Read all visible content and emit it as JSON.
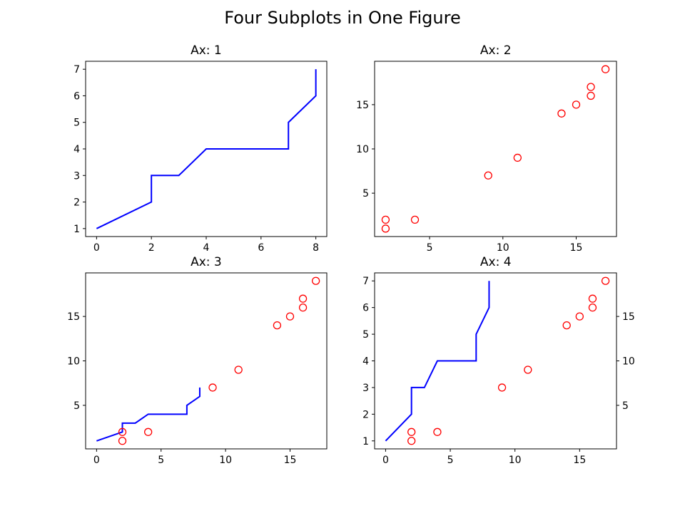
{
  "figure": {
    "title": "Four Subplots in One Figure"
  },
  "chart_data": [
    {
      "type": "line",
      "title": "Ax: 1",
      "xlim": [
        -0.4,
        8.4
      ],
      "ylim": [
        0.7,
        7.3
      ],
      "xticks": [
        0,
        2,
        4,
        6,
        8
      ],
      "yticks": [
        1,
        2,
        3,
        4,
        5,
        6,
        7
      ],
      "grid": false,
      "series": [
        {
          "kind": "line",
          "color": "#0000ff",
          "axis": "left",
          "x": [
            0,
            2,
            2,
            3,
            4,
            7,
            7,
            8,
            8
          ],
          "y": [
            1,
            2,
            3,
            3,
            4,
            4,
            5,
            6,
            7
          ]
        }
      ]
    },
    {
      "type": "scatter",
      "title": "Ax: 2",
      "xlim": [
        1.25,
        17.75
      ],
      "ylim": [
        0.1,
        19.9
      ],
      "xticks": [
        5,
        10,
        15
      ],
      "yticks": [
        5,
        10,
        15
      ],
      "grid": false,
      "series": [
        {
          "kind": "scatter",
          "color": "#ff0000",
          "axis": "left",
          "x": [
            2,
            2,
            4,
            9,
            11,
            14,
            15,
            16,
            16,
            17
          ],
          "y": [
            1,
            2,
            2,
            7,
            9,
            14,
            15,
            16,
            17,
            19
          ]
        }
      ]
    },
    {
      "type": "line",
      "title": "Ax: 3",
      "xlim": [
        -0.85,
        17.85
      ],
      "ylim": [
        0.1,
        19.9
      ],
      "xticks": [
        0,
        5,
        10,
        15
      ],
      "yticks": [
        5,
        10,
        15
      ],
      "grid": false,
      "series": [
        {
          "kind": "line",
          "color": "#0000ff",
          "axis": "left",
          "x": [
            0,
            2,
            2,
            3,
            4,
            7,
            7,
            8,
            8
          ],
          "y": [
            1,
            2,
            3,
            3,
            4,
            4,
            5,
            6,
            7
          ]
        },
        {
          "kind": "scatter",
          "color": "#ff0000",
          "axis": "left",
          "x": [
            2,
            2,
            4,
            9,
            11,
            14,
            15,
            16,
            16,
            17
          ],
          "y": [
            1,
            2,
            2,
            7,
            9,
            14,
            15,
            16,
            17,
            19
          ]
        }
      ]
    },
    {
      "type": "line",
      "title": "Ax: 4",
      "xlim": [
        -0.85,
        17.85
      ],
      "ylim": [
        0.7,
        7.3
      ],
      "ylim_right": [
        0.1,
        19.9
      ],
      "xticks": [
        0,
        5,
        10,
        15
      ],
      "yticks": [
        1,
        2,
        3,
        4,
        5,
        6,
        7
      ],
      "yticks_right": [
        5,
        10,
        15
      ],
      "grid": false,
      "series": [
        {
          "kind": "line",
          "color": "#0000ff",
          "axis": "left",
          "x": [
            0,
            2,
            2,
            3,
            4,
            7,
            7,
            8,
            8
          ],
          "y": [
            1,
            2,
            3,
            3,
            4,
            4,
            5,
            6,
            7
          ]
        },
        {
          "kind": "scatter",
          "color": "#ff0000",
          "axis": "right",
          "x": [
            2,
            2,
            4,
            9,
            11,
            14,
            15,
            16,
            16,
            17
          ],
          "y": [
            1,
            2,
            2,
            7,
            9,
            14,
            15,
            16,
            17,
            19
          ]
        }
      ]
    }
  ]
}
